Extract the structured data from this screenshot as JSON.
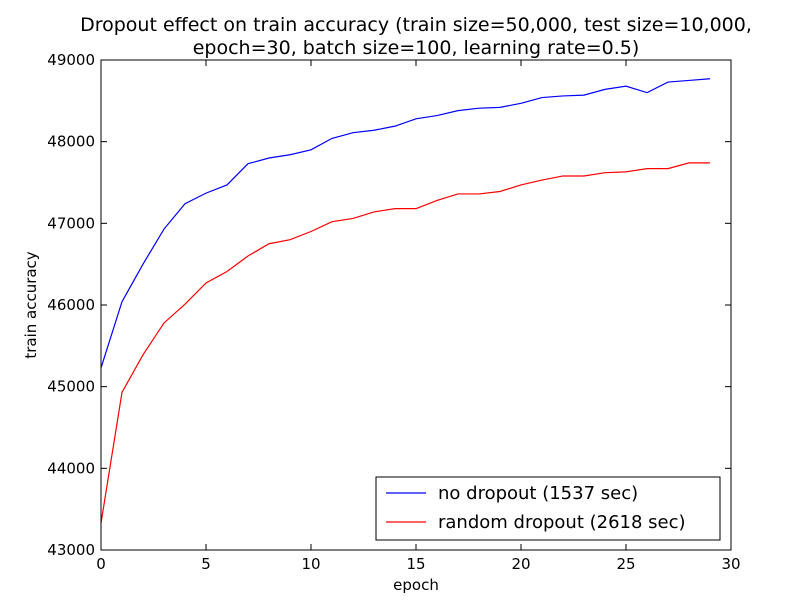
{
  "chart_data": {
    "type": "line",
    "title_line1": "Dropout effect on train accuracy (train size=50,000, test size=10,000,",
    "title_line2": "epoch=30, batch size=100, learning rate=0.5)",
    "xlabel": "epoch",
    "ylabel": "train accuracy",
    "xlim": [
      0,
      30
    ],
    "ylim": [
      43000,
      49000
    ],
    "xticks": [
      0,
      5,
      10,
      15,
      20,
      25,
      30
    ],
    "yticks": [
      43000,
      44000,
      45000,
      46000,
      47000,
      48000,
      49000
    ],
    "grid": false,
    "legend_position": "bottom-right",
    "x": [
      0,
      1,
      2,
      3,
      4,
      5,
      6,
      7,
      8,
      9,
      10,
      11,
      12,
      13,
      14,
      15,
      16,
      17,
      18,
      19,
      20,
      21,
      22,
      23,
      24,
      25,
      26,
      27,
      28,
      29
    ],
    "series": [
      {
        "name": "no dropout (1537 sec)",
        "color": "#0000ff",
        "values": [
          45230,
          46040,
          46500,
          46930,
          47240,
          47370,
          47470,
          47730,
          47800,
          47840,
          47900,
          48040,
          48110,
          48140,
          48190,
          48280,
          48320,
          48380,
          48410,
          48420,
          48470,
          48540,
          48560,
          48570,
          48640,
          48680,
          48600,
          48730,
          48750,
          48770
        ]
      },
      {
        "name": "random dropout (2618 sec)",
        "color": "#ff0000",
        "values": [
          43330,
          44930,
          45390,
          45780,
          46010,
          46270,
          46410,
          46600,
          46750,
          46800,
          46900,
          47020,
          47060,
          47140,
          47180,
          47180,
          47280,
          47360,
          47360,
          47390,
          47470,
          47530,
          47580,
          47580,
          47620,
          47630,
          47670,
          47670,
          47740,
          47740
        ]
      }
    ]
  }
}
